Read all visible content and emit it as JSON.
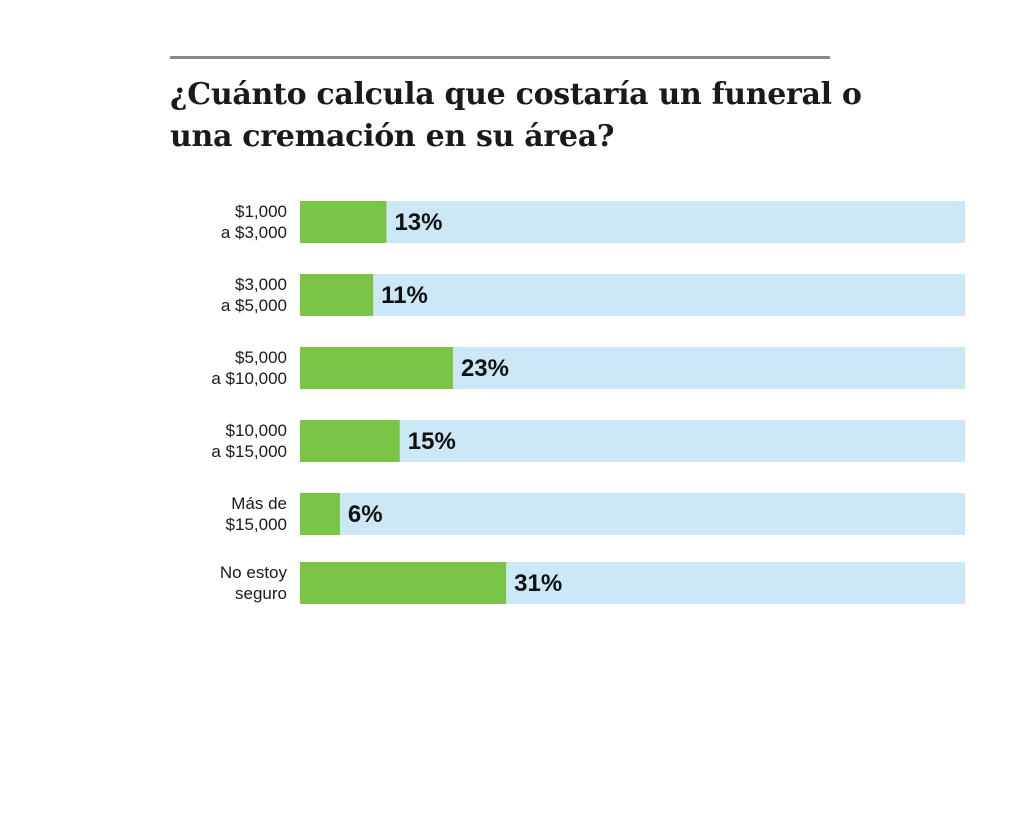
{
  "chart_data": {
    "type": "bar",
    "orientation": "horizontal",
    "title": "¿Cuánto calcula que costaría un funeral o una cremación en su área?",
    "categories": [
      [
        "$1,000",
        "a $3,000"
      ],
      [
        "$3,000",
        "a $5,000"
      ],
      [
        "$5,000",
        "a $10,000"
      ],
      [
        "$10,000",
        "a $15,000"
      ],
      [
        "Más de",
        "$15,000"
      ],
      [
        "No estoy",
        "seguro"
      ]
    ],
    "values": [
      13,
      11,
      23,
      15,
      6,
      31
    ],
    "value_labels": [
      "13%",
      "11%",
      "23%",
      "15%",
      "6%",
      "31%"
    ],
    "xlim": [
      0,
      100
    ],
    "grid": false,
    "legend": "none",
    "colors": {
      "bar": "#7bc546",
      "track": "#cce8f6",
      "rule": "#8a8a8a",
      "text": "#1a1a1a"
    }
  }
}
